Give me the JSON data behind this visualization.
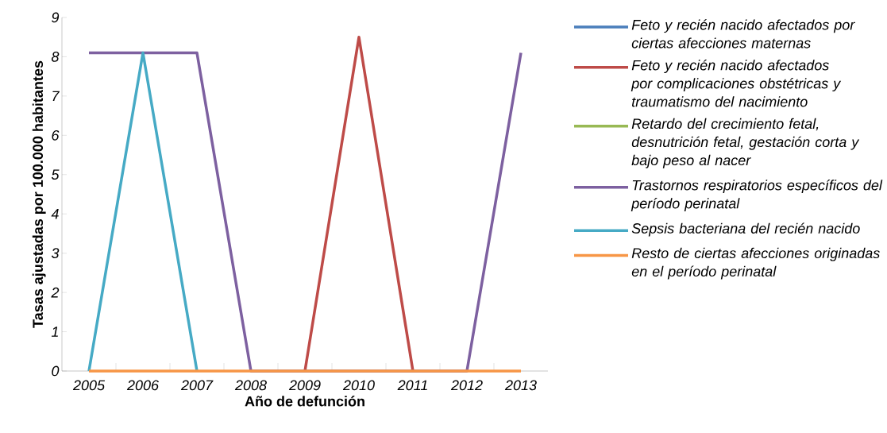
{
  "chart_data": {
    "type": "line",
    "xlabel": "Año de defunción",
    "ylabel": "Tasas ajustadas por 100.000 habitantes",
    "categories": [
      "2005",
      "2006",
      "2007",
      "2008",
      "2009",
      "2010",
      "2011",
      "2012",
      "2013"
    ],
    "ylim": [
      0,
      9
    ],
    "yticks": [
      0,
      1,
      2,
      3,
      4,
      5,
      6,
      7,
      8,
      9
    ],
    "grid": false,
    "legend": "right",
    "series": [
      {
        "name": "Feto y recién nacido afectados por ciertas afecciones maternas",
        "color": "#4a7ebb",
        "values": [
          null,
          null,
          null,
          null,
          null,
          null,
          null,
          null,
          null
        ]
      },
      {
        "name": "Feto y recién nacido afectados por complicaciones obstétricas y traumatismo del nacimiento",
        "color": "#be4b48",
        "values": [
          null,
          null,
          null,
          null,
          0,
          8.5,
          0,
          null,
          null
        ]
      },
      {
        "name": "Retardo del crecimiento fetal, desnutrición fetal, gestación corta y bajo peso al nacer",
        "color": "#98b954",
        "values": [
          null,
          null,
          null,
          null,
          null,
          null,
          null,
          null,
          null
        ]
      },
      {
        "name": "Trastornos respiratorios específicos del período perinatal",
        "color": "#7d60a0",
        "values": [
          8.1,
          8.1,
          8.1,
          0,
          null,
          null,
          null,
          0,
          8.1
        ]
      },
      {
        "name": "Sepsis bacteriana del recién nacido",
        "color": "#46aac5",
        "values": [
          0,
          8.1,
          0,
          null,
          null,
          null,
          null,
          null,
          null
        ]
      },
      {
        "name": "Resto de ciertas afecciones originadas en el período perinatal",
        "color": "#f79646",
        "values": [
          0,
          0,
          0,
          0,
          0,
          0,
          0,
          0,
          0
        ]
      }
    ]
  }
}
